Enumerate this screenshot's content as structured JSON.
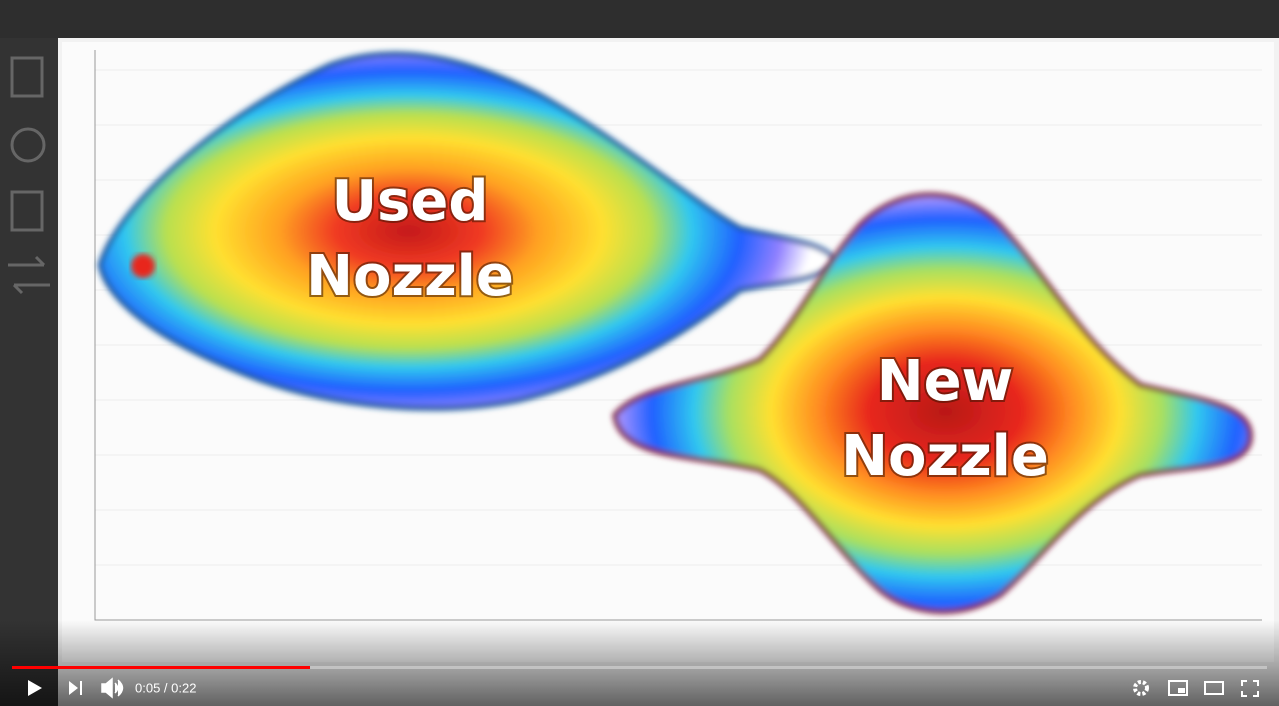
{
  "overlay": {
    "used_nozzle": [
      "Used",
      "Nozzle"
    ],
    "new_nozzle": [
      "New",
      "Nozzle"
    ]
  },
  "player": {
    "time": "0:05 / 0:22"
  }
}
